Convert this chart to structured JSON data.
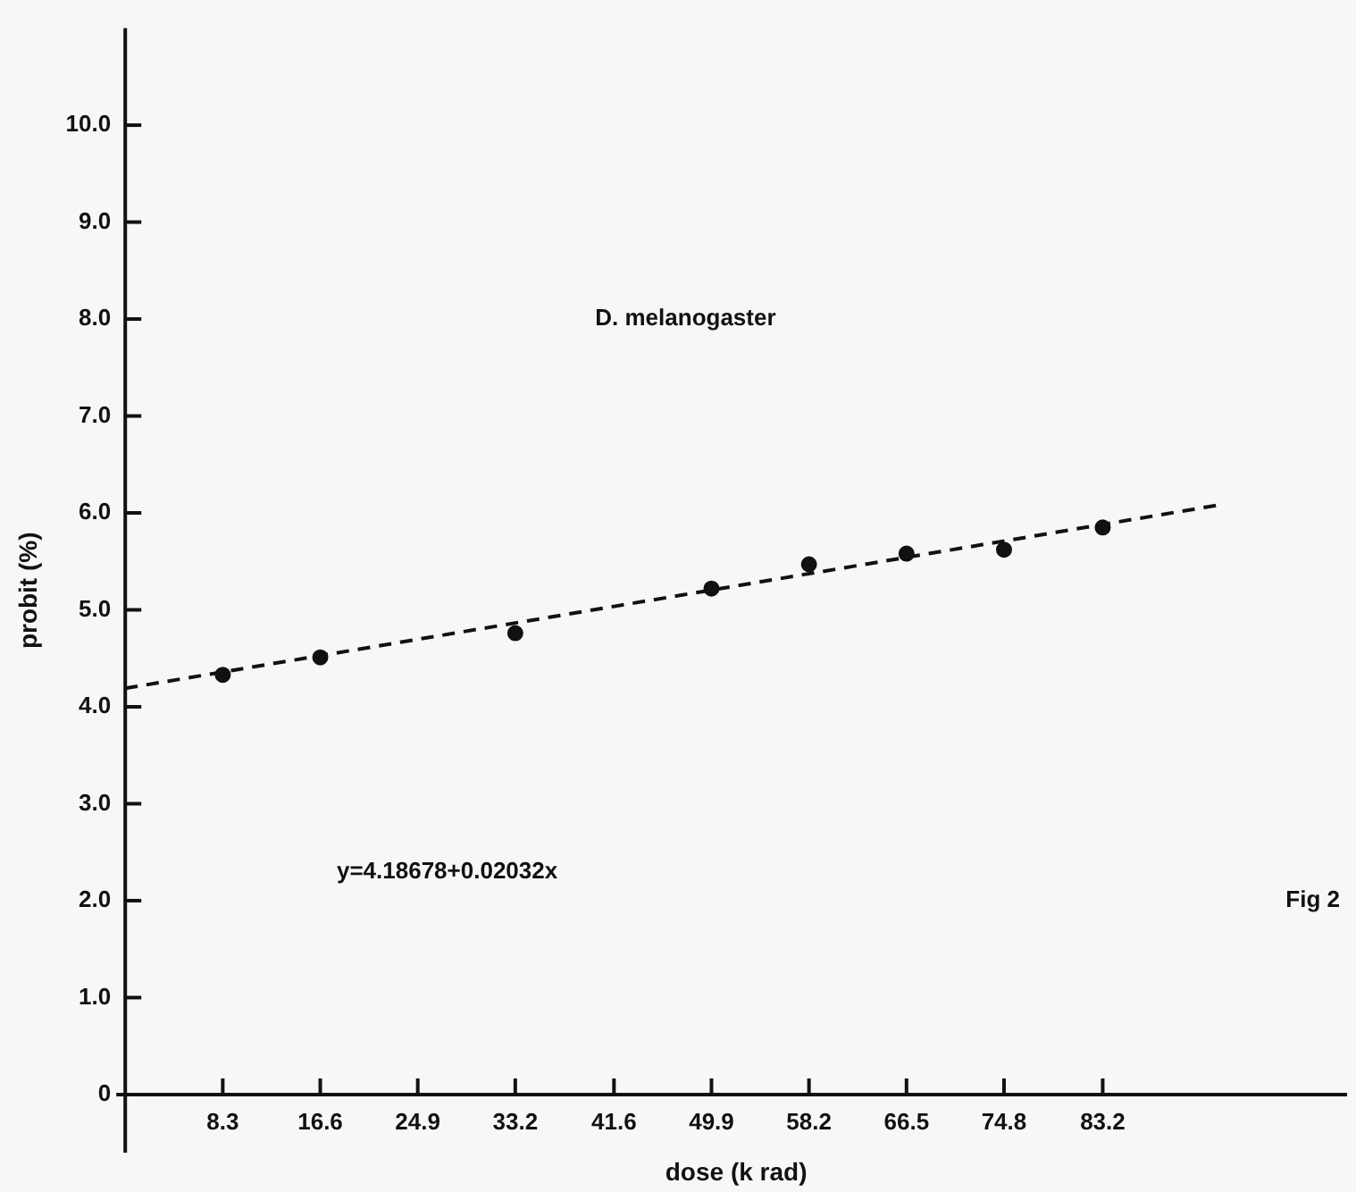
{
  "chart_data": {
    "type": "scatter",
    "xlabel": "dose (k rad)",
    "ylabel": "probit (%)",
    "annotations": [
      "D. melanogaster",
      "y=4.18678+0.02032x",
      "Fig 2"
    ],
    "series": [
      {
        "color": "#111111",
        "x": [
          8.3,
          16.6,
          33.2,
          49.9,
          58.2,
          66.5,
          74.8,
          83.2
        ],
        "values": [
          4.33,
          4.51,
          4.76,
          5.22,
          5.47,
          5.58,
          5.62,
          5.85
        ],
        "marker": "circle"
      },
      {
        "type": "line",
        "color": "#111111",
        "x": [
          0,
          93
        ],
        "values": [
          4.19,
          6.08
        ],
        "line_style": "dashed",
        "marker": "none"
      }
    ],
    "xlim": [
      0,
      104
    ],
    "ylim": [
      -0.6,
      11
    ],
    "xticks": [
      8.3,
      16.6,
      24.9,
      33.2,
      41.6,
      49.9,
      58.2,
      66.5,
      74.8,
      83.2
    ],
    "yticks": [
      0,
      {
        "value": 1,
        "label": "1.0"
      },
      {
        "value": 2,
        "label": "2.0"
      },
      {
        "value": 3,
        "label": "3.0"
      },
      {
        "value": 4,
        "label": "4.0"
      },
      {
        "value": 5,
        "label": "5.0"
      },
      {
        "value": 6,
        "label": "6.0"
      },
      {
        "value": 7,
        "label": "7.0"
      },
      {
        "value": 8,
        "label": "8.0"
      },
      {
        "value": 9,
        "label": "9.0"
      },
      {
        "value": 10,
        "label": "10.0"
      }
    ],
    "grid": false,
    "legend": false
  }
}
